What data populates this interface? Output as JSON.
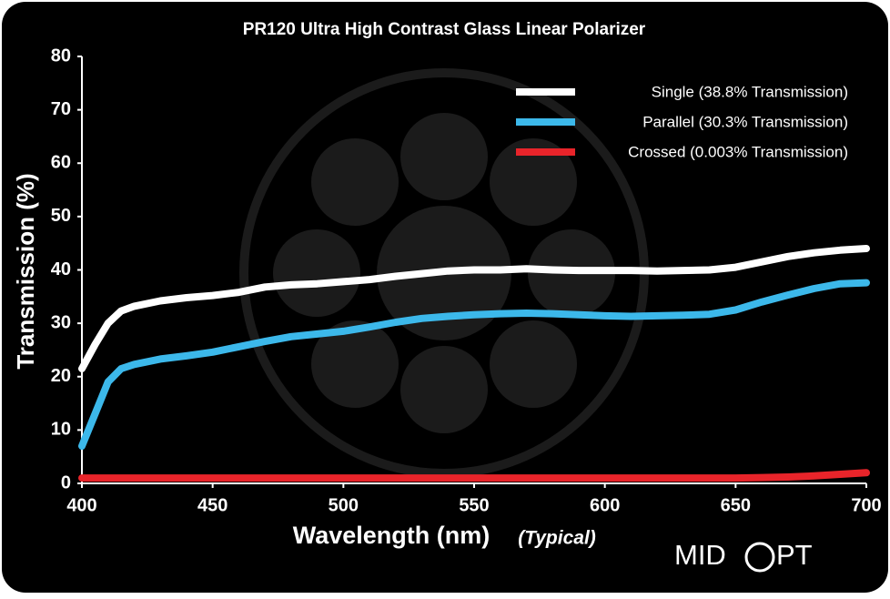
{
  "chart_data": {
    "type": "line",
    "title": "PR120 Ultra High Contrast Glass Linear Polarizer",
    "x_label": "Wavelength (nm)",
    "x_label_note": "(Typical)",
    "y_label": "Transmission (%)",
    "x": [
      400,
      405,
      410,
      415,
      420,
      430,
      440,
      450,
      460,
      470,
      480,
      490,
      500,
      510,
      520,
      530,
      540,
      550,
      560,
      570,
      580,
      590,
      600,
      610,
      620,
      630,
      640,
      650,
      660,
      670,
      680,
      690,
      700
    ],
    "series": [
      {
        "name": "Single (38.8% Transmission)",
        "color": "#ffffff",
        "values": [
          21.5,
          26,
          30,
          32.3,
          33.2,
          34.2,
          34.8,
          35.2,
          35.8,
          36.8,
          37.2,
          37.4,
          37.8,
          38.2,
          38.8,
          39.3,
          39.8,
          40,
          40,
          40.2,
          40,
          39.9,
          39.9,
          39.9,
          39.8,
          39.9,
          40,
          40.5,
          41.5,
          42.5,
          43.2,
          43.7,
          44
        ]
      },
      {
        "name": "Parallel (30.3% Transmission)",
        "color": "#3cb8ea",
        "values": [
          7,
          13,
          19,
          21.5,
          22.3,
          23.3,
          23.9,
          24.6,
          25.6,
          26.6,
          27.5,
          28,
          28.5,
          29.3,
          30.2,
          30.9,
          31.3,
          31.6,
          31.8,
          31.9,
          31.8,
          31.6,
          31.4,
          31.3,
          31.4,
          31.5,
          31.7,
          32.5,
          34,
          35.3,
          36.5,
          37.4,
          37.6
        ]
      },
      {
        "name": "Crossed (0.003% Transmission)",
        "color": "#e8242a",
        "values": [
          1,
          1,
          1,
          1,
          1,
          1,
          1,
          1,
          1,
          1,
          1,
          1,
          1,
          1,
          1,
          1,
          1,
          1,
          1,
          1,
          1,
          1,
          1,
          1,
          1,
          1,
          1,
          1,
          1.1,
          1.2,
          1.4,
          1.7,
          2
        ]
      }
    ],
    "xlim": [
      400,
      700
    ],
    "xticks": [
      400,
      450,
      500,
      550,
      600,
      650,
      700
    ],
    "ylim": [
      0,
      80
    ],
    "yticks": [
      0,
      10,
      20,
      30,
      40,
      50,
      60,
      70,
      80
    ],
    "legend": "top-right"
  },
  "logo": {
    "left": "MID",
    "right": "PT"
  }
}
